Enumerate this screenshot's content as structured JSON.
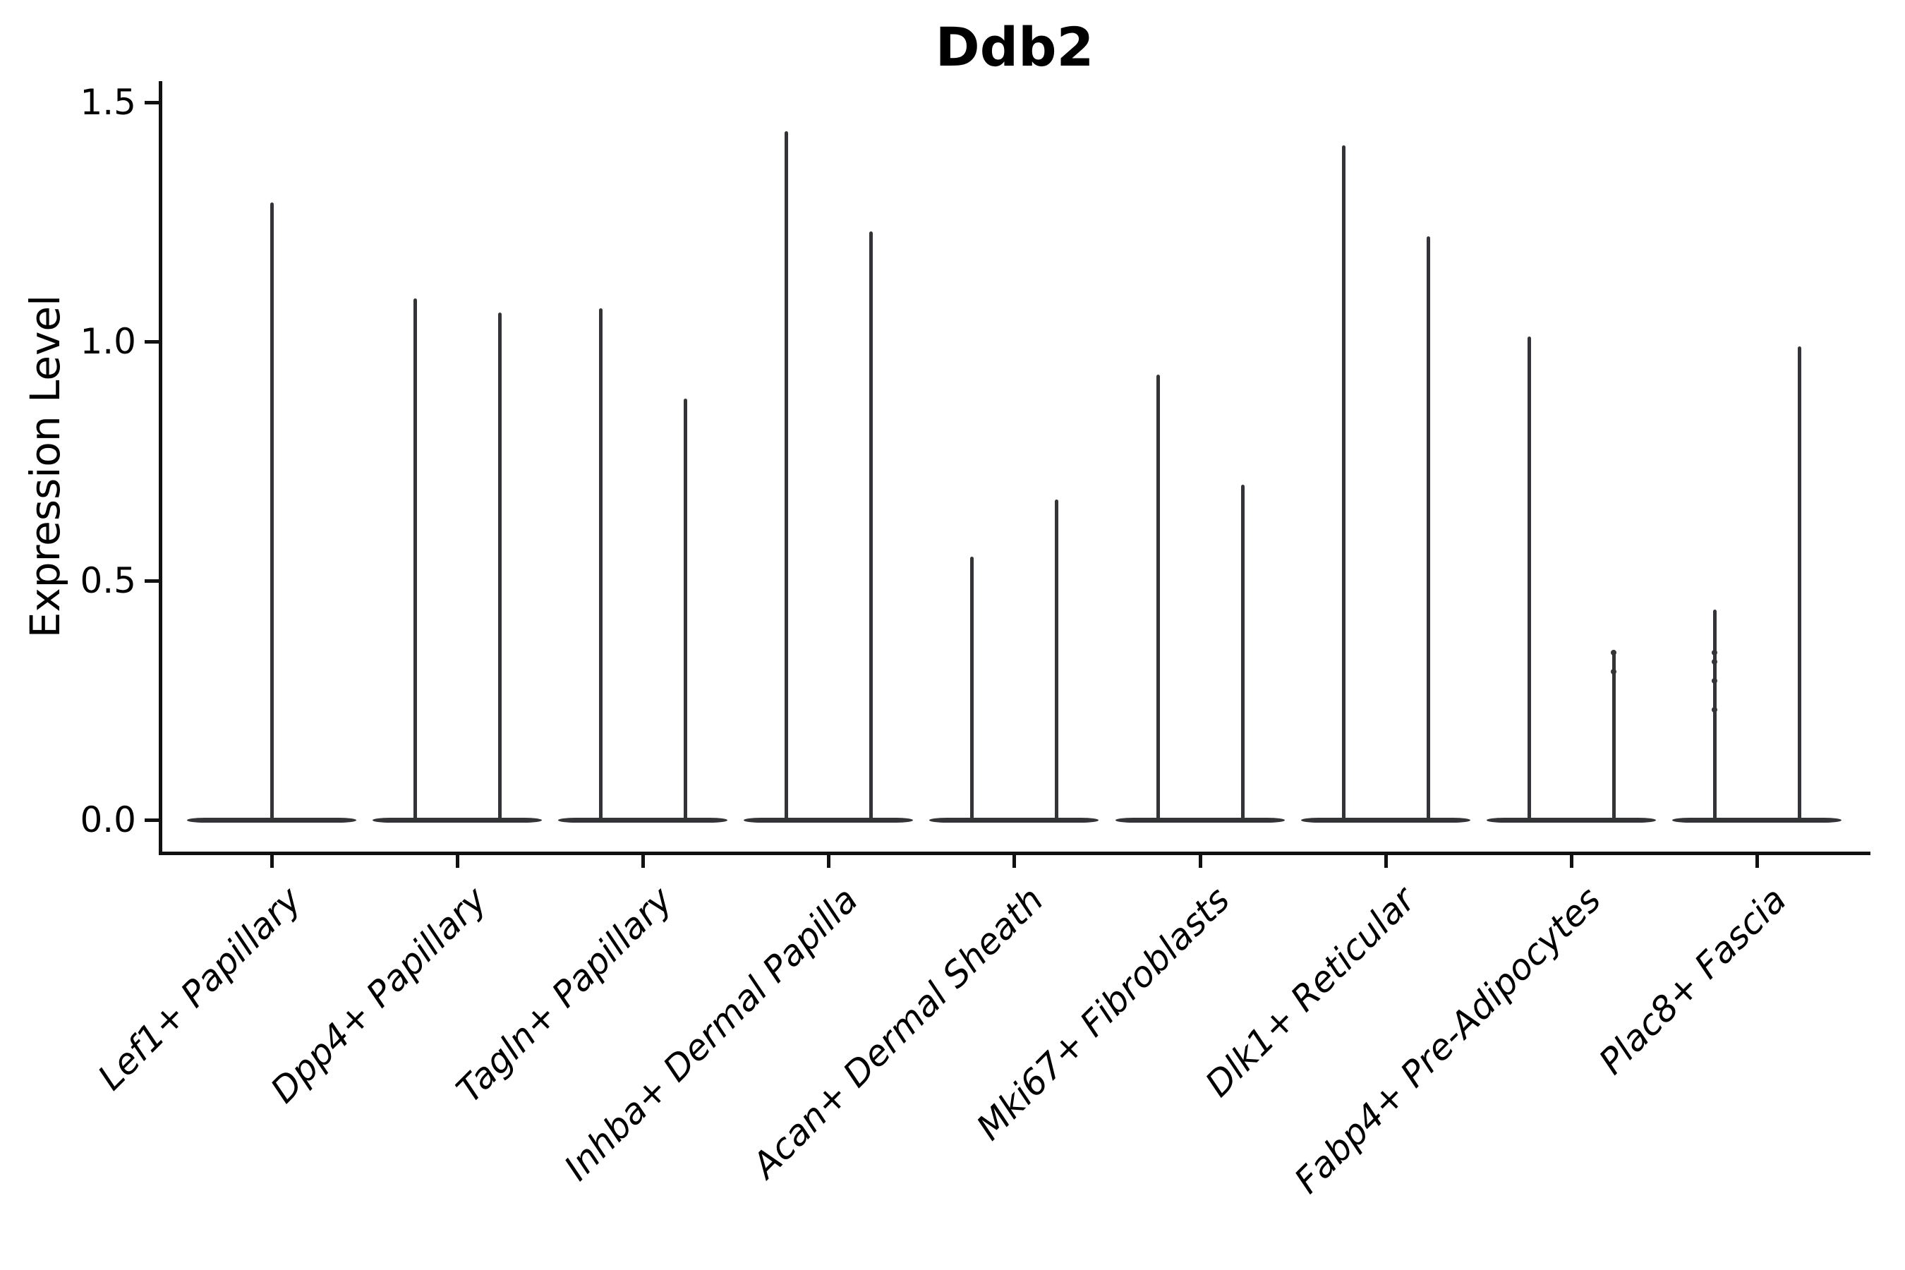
{
  "chart_data": {
    "type": "violin",
    "title": "Ddb2",
    "xlabel": "",
    "ylabel": "Expression Level",
    "ylim": [
      0,
      1.5
    ],
    "yticks": [
      0.0,
      0.5,
      1.0,
      1.5
    ],
    "ytick_labels": [
      "0.0",
      "0.5",
      "1.0",
      "1.5"
    ],
    "grid": false,
    "legend": "none",
    "shape_note": "Each violin is a near-zero-inflated expression distribution: a wide flat lens at expression 0 with a hair-thin spike rising to the maximum expressed value. Categories with two violins show them side by side sharing one merged base; Lef1+ Papillary has a single full-width violin.",
    "categories": [
      {
        "label": "Lef1+ Papillary",
        "violins": [
          {
            "position": "center",
            "max": 1.29
          }
        ]
      },
      {
        "label": "Dpp4+ Papillary",
        "violins": [
          {
            "position": "left",
            "max": 1.09
          },
          {
            "position": "right",
            "max": 1.06
          }
        ]
      },
      {
        "label": "Tagln+ Papillary",
        "violins": [
          {
            "position": "left",
            "max": 1.07
          },
          {
            "position": "right",
            "max": 0.88
          }
        ]
      },
      {
        "label": "Inhba+ Dermal Papilla",
        "violins": [
          {
            "position": "left",
            "max": 1.44
          },
          {
            "position": "right",
            "max": 1.23
          }
        ]
      },
      {
        "label": "Acan+ Dermal Sheath",
        "violins": [
          {
            "position": "left",
            "max": 0.55
          },
          {
            "position": "right",
            "max": 0.67
          }
        ]
      },
      {
        "label": "Mki67+ Fibroblasts",
        "violins": [
          {
            "position": "left",
            "max": 0.93
          },
          {
            "position": "right",
            "max": 0.7
          }
        ]
      },
      {
        "label": "Dlk1+ Reticular",
        "violins": [
          {
            "position": "left",
            "max": 1.41
          },
          {
            "position": "right",
            "max": 1.22
          }
        ]
      },
      {
        "label": "Fabp4+ Pre-Adipocytes",
        "violins": [
          {
            "position": "left",
            "max": 1.01
          },
          {
            "position": "right",
            "max": 0.35,
            "points": [
              0.35,
              0.31
            ]
          }
        ]
      },
      {
        "label": "Plac8+ Fascia",
        "violins": [
          {
            "position": "left",
            "max": 0.44,
            "points": [
              0.35,
              0.33,
              0.29,
              0.23
            ]
          },
          {
            "position": "right",
            "max": 0.99
          }
        ]
      }
    ]
  },
  "colors": {
    "background": "#ffffff",
    "violin": "#333438",
    "axis": "#111111",
    "text": "#000000"
  }
}
